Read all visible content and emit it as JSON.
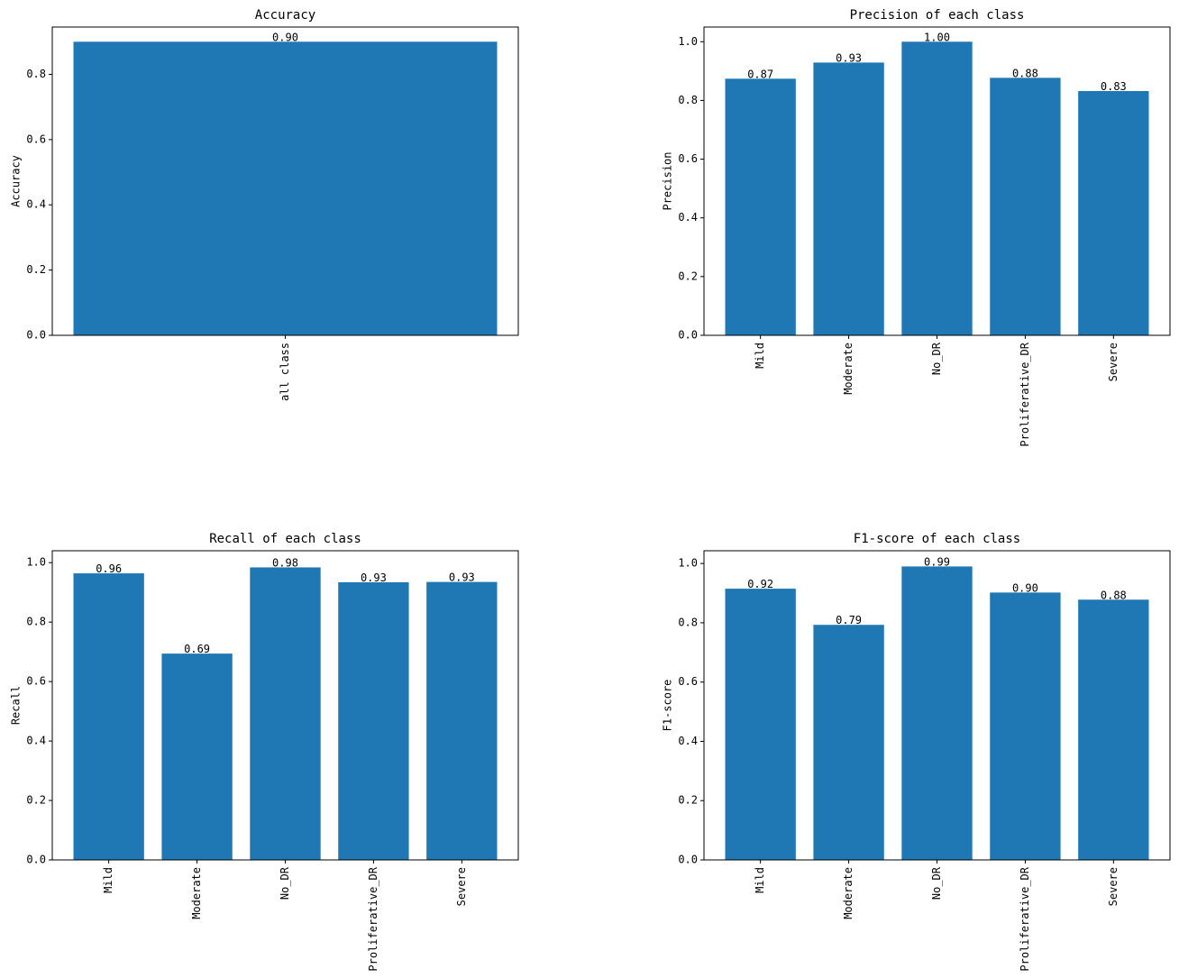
{
  "chart_data": [
    {
      "type": "bar",
      "title": "Accuracy",
      "ylabel": "Accuracy",
      "categories": [
        "all class"
      ],
      "values": [
        0.9
      ],
      "value_labels": [
        "0.90"
      ],
      "color": "#1f77b4",
      "ylim": [
        0,
        0.945
      ],
      "yticks": [
        {
          "value": 0,
          "label": "0.0"
        },
        {
          "value": 0.2,
          "label": "0.2"
        },
        {
          "value": 0.4,
          "label": "0.4"
        },
        {
          "value": 0.6,
          "label": "0.6"
        },
        {
          "value": 0.8,
          "label": "0.8"
        }
      ]
    },
    {
      "type": "bar",
      "title": "Precision of each class",
      "ylabel": "Precision",
      "categories": [
        "Mild",
        "Moderate",
        "No_DR",
        "Proliferative_DR",
        "Severe"
      ],
      "values": [
        0.874,
        0.929,
        1.0,
        0.877,
        0.832
      ],
      "value_labels": [
        "0.87",
        "0.93",
        "1.00",
        "0.88",
        "0.83"
      ],
      "color": "#1f77b4",
      "ylim": [
        0,
        1.05
      ],
      "yticks": [
        {
          "value": 0,
          "label": "0.0"
        },
        {
          "value": 0.2,
          "label": "0.2"
        },
        {
          "value": 0.4,
          "label": "0.4"
        },
        {
          "value": 0.6,
          "label": "0.6"
        },
        {
          "value": 0.8,
          "label": "0.8"
        },
        {
          "value": 1.0,
          "label": "1.0"
        }
      ]
    },
    {
      "type": "bar",
      "title": "Recall of each class",
      "ylabel": "Recall",
      "categories": [
        "Mild",
        "Moderate",
        "No_DR",
        "Proliferative_DR",
        "Severe"
      ],
      "values": [
        0.964,
        0.694,
        0.984,
        0.934,
        0.935
      ],
      "value_labels": [
        "0.96",
        "0.69",
        "0.98",
        "0.93",
        "0.93"
      ],
      "color": "#1f77b4",
      "ylim": [
        0,
        1.04
      ],
      "yticks": [
        {
          "value": 0,
          "label": "0.0"
        },
        {
          "value": 0.2,
          "label": "0.2"
        },
        {
          "value": 0.4,
          "label": "0.4"
        },
        {
          "value": 0.6,
          "label": "0.6"
        },
        {
          "value": 0.8,
          "label": "0.8"
        },
        {
          "value": 1.0,
          "label": "1.0"
        }
      ]
    },
    {
      "type": "bar",
      "title": "F1-score of each class",
      "ylabel": "F1-score",
      "categories": [
        "Mild",
        "Moderate",
        "No_DR",
        "Proliferative_DR",
        "Severe"
      ],
      "values": [
        0.915,
        0.793,
        0.99,
        0.902,
        0.878
      ],
      "value_labels": [
        "0.92",
        "0.79",
        "0.99",
        "0.90",
        "0.88"
      ],
      "color": "#1f77b4",
      "ylim": [
        0,
        1.043
      ],
      "yticks": [
        {
          "value": 0,
          "label": "0.0"
        },
        {
          "value": 0.2,
          "label": "0.2"
        },
        {
          "value": 0.4,
          "label": "0.4"
        },
        {
          "value": 0.6,
          "label": "0.6"
        },
        {
          "value": 0.8,
          "label": "0.8"
        },
        {
          "value": 1.0,
          "label": "1.0"
        }
      ]
    }
  ]
}
